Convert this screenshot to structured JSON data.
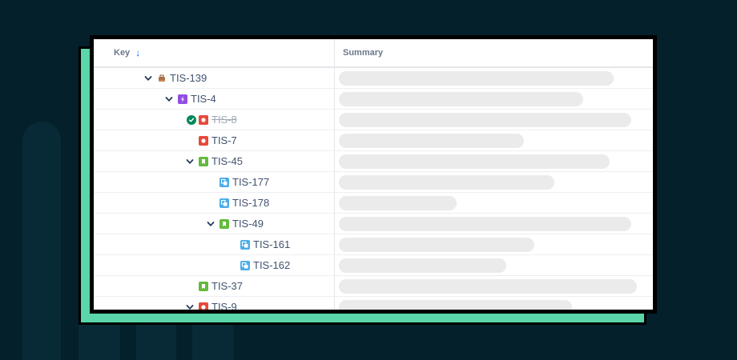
{
  "table": {
    "columns": {
      "key": "Key",
      "summary": "Summary"
    },
    "rows": [
      {
        "key": "TIS-139",
        "type": "epic",
        "expanded": true,
        "done": false,
        "depth": 0
      },
      {
        "key": "TIS-4",
        "type": "sub-epic",
        "expanded": true,
        "done": false,
        "depth": 1
      },
      {
        "key": "TIS-8",
        "type": "bug",
        "expanded": false,
        "done": true,
        "depth": 2
      },
      {
        "key": "TIS-7",
        "type": "bug",
        "expanded": false,
        "done": false,
        "depth": 2
      },
      {
        "key": "TIS-45",
        "type": "story",
        "expanded": true,
        "done": false,
        "depth": 2
      },
      {
        "key": "TIS-177",
        "type": "subtask",
        "expanded": false,
        "done": false,
        "depth": 3
      },
      {
        "key": "TIS-178",
        "type": "subtask",
        "expanded": false,
        "done": false,
        "depth": 3
      },
      {
        "key": "TIS-49",
        "type": "story",
        "expanded": true,
        "done": false,
        "depth": 3
      },
      {
        "key": "TIS-161",
        "type": "subtask",
        "expanded": false,
        "done": false,
        "depth": 4
      },
      {
        "key": "TIS-162",
        "type": "subtask",
        "expanded": false,
        "done": false,
        "depth": 4
      },
      {
        "key": "TIS-37",
        "type": "story",
        "expanded": false,
        "done": false,
        "depth": 2
      },
      {
        "key": "TIS-9",
        "type": "bug",
        "expanded": true,
        "done": false,
        "depth": 2
      }
    ]
  },
  "colors": {
    "background": "#04202b",
    "accent_green": "#5ad6a8",
    "bug": "#e5493a",
    "story": "#63ba3c",
    "subtask": "#4bade8",
    "sub_epic": "#904ee2",
    "done": "#00875a",
    "sort_arrow": "#0065ff"
  }
}
